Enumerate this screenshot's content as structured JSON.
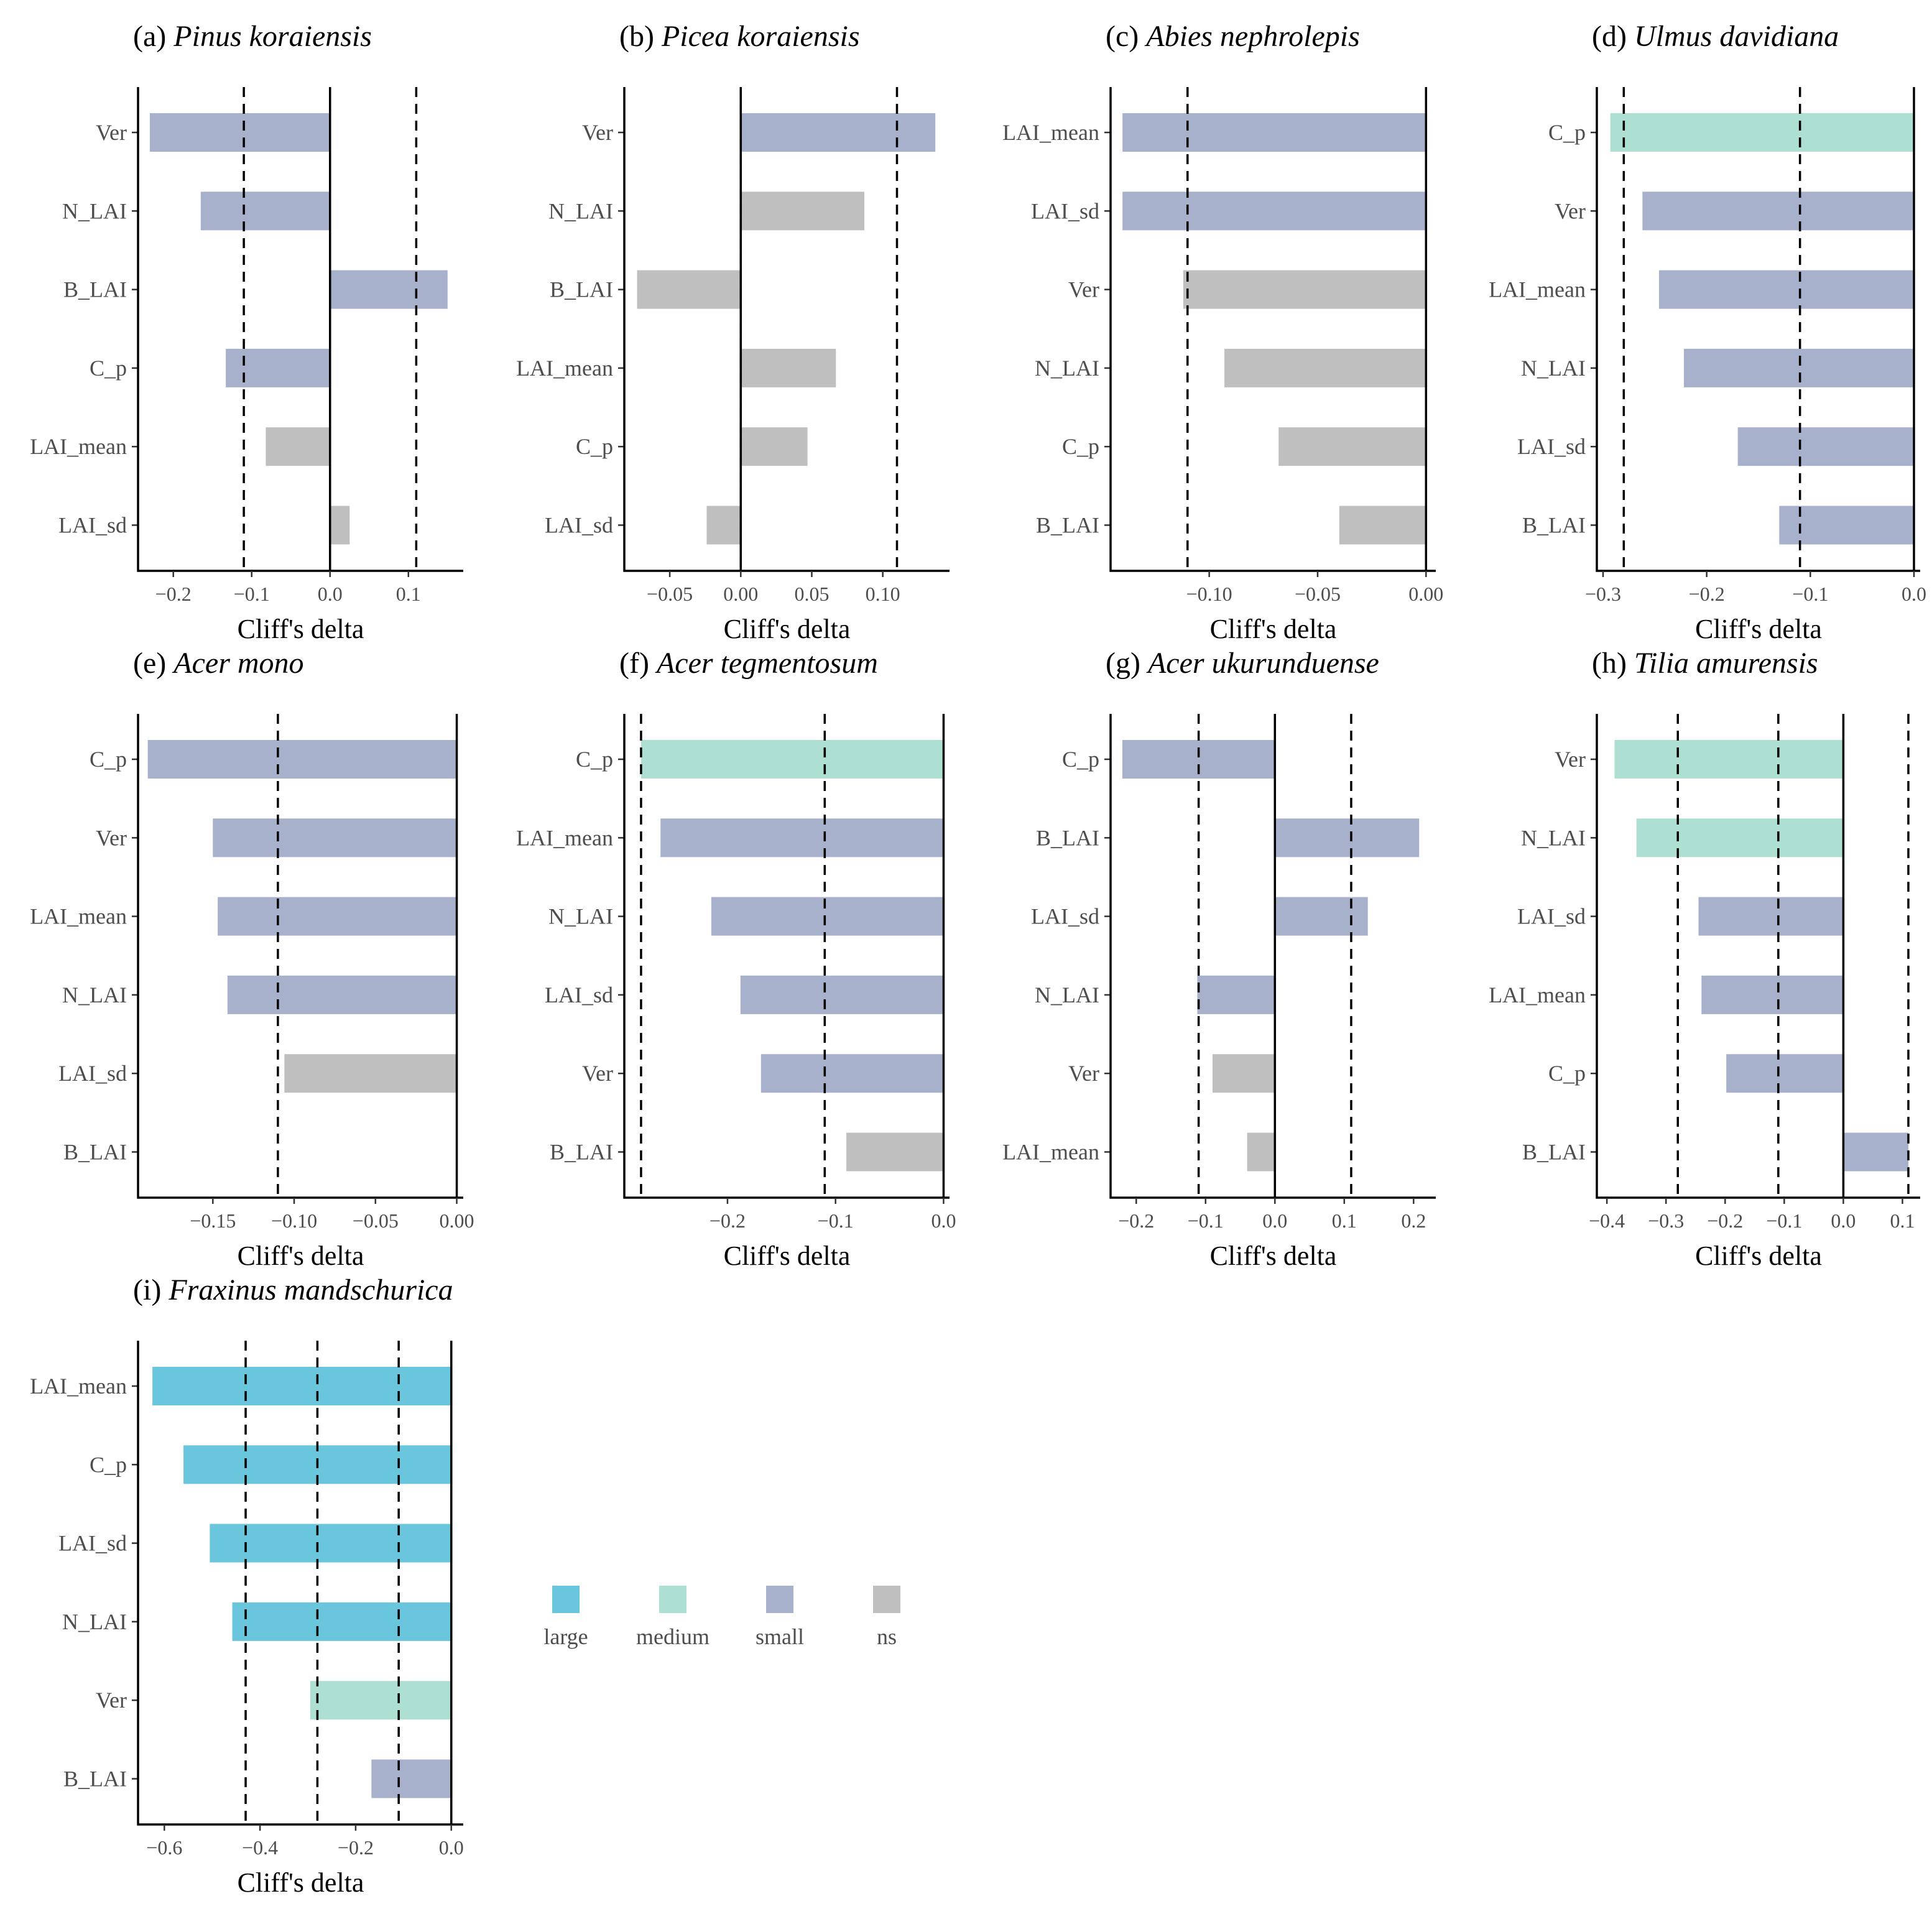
{
  "chart_data": {
    "type": "bar",
    "orientation": "horizontal",
    "xlabel": "Cliff's delta",
    "colors": {
      "large": "#6ac6dc",
      "medium": "#addfd3",
      "small": "#a7b1cc",
      "ns": "#bfbfbf"
    },
    "legend": {
      "placement": "bottom-center",
      "items": [
        {
          "key": "large",
          "label": "large"
        },
        {
          "key": "medium",
          "label": "medium"
        },
        {
          "key": "small",
          "label": "small"
        },
        {
          "key": "ns",
          "label": "ns"
        }
      ]
    },
    "panels": [
      {
        "tag": "(a)",
        "species": "Pinus koraiensis",
        "xlim": [
          -0.245,
          0.17
        ],
        "ticks": [
          -0.2,
          -0.1,
          0.0,
          0.1
        ],
        "tick_labels": [
          "−0.2",
          "−0.1",
          "0.0",
          "0.1"
        ],
        "thresholds": [
          -0.11,
          0.11
        ],
        "bars": [
          {
            "label": "Ver",
            "value": -0.23,
            "sig": "small"
          },
          {
            "label": "N_LAI",
            "value": -0.165,
            "sig": "small"
          },
          {
            "label": "B_LAI",
            "value": 0.15,
            "sig": "small"
          },
          {
            "label": "C_p",
            "value": -0.133,
            "sig": "small"
          },
          {
            "label": "LAI_mean",
            "value": -0.082,
            "sig": "ns"
          },
          {
            "label": "LAI_sd",
            "value": 0.025,
            "sig": "ns"
          }
        ]
      },
      {
        "tag": "(b)",
        "species": "Picea koraiensis",
        "xlim": [
          -0.082,
          0.147
        ],
        "ticks": [
          -0.05,
          0.0,
          0.05,
          0.1
        ],
        "tick_labels": [
          "−0.05",
          "0.00",
          "0.05",
          "0.10"
        ],
        "thresholds": [
          0.0,
          0.11
        ],
        "bars": [
          {
            "label": "Ver",
            "value": 0.137,
            "sig": "small"
          },
          {
            "label": "N_LAI",
            "value": 0.087,
            "sig": "ns"
          },
          {
            "label": "B_LAI",
            "value": -0.073,
            "sig": "ns"
          },
          {
            "label": "LAI_mean",
            "value": 0.067,
            "sig": "ns"
          },
          {
            "label": "C_p",
            "value": 0.047,
            "sig": "ns"
          },
          {
            "label": "LAI_sd",
            "value": -0.024,
            "sig": "ns"
          }
        ]
      },
      {
        "tag": "(c)",
        "species": "Abies nephrolepis",
        "xlim": [
          -0.1455,
          0.0045
        ],
        "ticks": [
          -0.1,
          -0.05,
          0.0
        ],
        "tick_labels": [
          "−0.10",
          "−0.05",
          "0.00"
        ],
        "thresholds": [
          -0.11
        ],
        "bars": [
          {
            "label": "LAI_mean",
            "value": -0.14,
            "sig": "small"
          },
          {
            "label": "LAI_sd",
            "value": -0.14,
            "sig": "small"
          },
          {
            "label": "Ver",
            "value": -0.112,
            "sig": "ns"
          },
          {
            "label": "N_LAI",
            "value": -0.093,
            "sig": "ns"
          },
          {
            "label": "C_p",
            "value": -0.068,
            "sig": "ns"
          },
          {
            "label": "B_LAI",
            "value": -0.04,
            "sig": "ns"
          }
        ]
      },
      {
        "tag": "(d)",
        "species": "Ulmus davidiana",
        "xlim": [
          -0.306,
          0.006
        ],
        "ticks": [
          -0.3,
          -0.2,
          -0.1,
          0.0
        ],
        "tick_labels": [
          "−0.3",
          "−0.2",
          "−0.1",
          "0.0"
        ],
        "thresholds": [
          -0.28,
          -0.11
        ],
        "bars": [
          {
            "label": "C_p",
            "value": -0.293,
            "sig": "medium"
          },
          {
            "label": "Ver",
            "value": -0.262,
            "sig": "small"
          },
          {
            "label": "LAI_mean",
            "value": -0.246,
            "sig": "small"
          },
          {
            "label": "N_LAI",
            "value": -0.222,
            "sig": "small"
          },
          {
            "label": "LAI_sd",
            "value": -0.17,
            "sig": "small"
          },
          {
            "label": "B_LAI",
            "value": -0.13,
            "sig": "small"
          }
        ]
      },
      {
        "tag": "(e)",
        "species": "Acer mono",
        "xlim": [
          -0.196,
          0.004
        ],
        "ticks": [
          -0.15,
          -0.1,
          -0.05,
          0.0
        ],
        "tick_labels": [
          "−0.15",
          "−0.10",
          "−0.05",
          "0.00"
        ],
        "thresholds": [
          -0.11
        ],
        "bars": [
          {
            "label": "C_p",
            "value": -0.19,
            "sig": "small"
          },
          {
            "label": "Ver",
            "value": -0.15,
            "sig": "small"
          },
          {
            "label": "LAI_mean",
            "value": -0.147,
            "sig": "small"
          },
          {
            "label": "N_LAI",
            "value": -0.141,
            "sig": "small"
          },
          {
            "label": "LAI_sd",
            "value": -0.106,
            "sig": "ns"
          },
          {
            "label": "B_LAI",
            "value": 0.0,
            "sig": "ns"
          }
        ]
      },
      {
        "tag": "(f)",
        "species": "Acer tegmentosum",
        "xlim": [
          -0.2955,
          0.0055
        ],
        "ticks": [
          -0.2,
          -0.1,
          0.0
        ],
        "tick_labels": [
          "−0.2",
          "−0.1",
          "0.0"
        ],
        "thresholds": [
          -0.28,
          -0.11
        ],
        "bars": [
          {
            "label": "C_p",
            "value": -0.28,
            "sig": "medium"
          },
          {
            "label": "LAI_mean",
            "value": -0.262,
            "sig": "small"
          },
          {
            "label": "N_LAI",
            "value": -0.215,
            "sig": "small"
          },
          {
            "label": "LAI_sd",
            "value": -0.188,
            "sig": "small"
          },
          {
            "label": "Ver",
            "value": -0.169,
            "sig": "small"
          },
          {
            "label": "B_LAI",
            "value": -0.09,
            "sig": "ns"
          }
        ]
      },
      {
        "tag": "(g)",
        "species": "Acer ukurunduense",
        "xlim": [
          -0.237,
          0.232
        ],
        "ticks": [
          -0.2,
          -0.1,
          0.0,
          0.1,
          0.2
        ],
        "tick_labels": [
          "−0.2",
          "−0.1",
          "0.0",
          "0.1",
          "0.2"
        ],
        "thresholds": [
          -0.11,
          0.11
        ],
        "bars": [
          {
            "label": "C_p",
            "value": -0.22,
            "sig": "small"
          },
          {
            "label": "B_LAI",
            "value": 0.208,
            "sig": "small"
          },
          {
            "label": "LAI_sd",
            "value": 0.134,
            "sig": "small"
          },
          {
            "label": "N_LAI",
            "value": -0.112,
            "sig": "small"
          },
          {
            "label": "Ver",
            "value": -0.09,
            "sig": "ns"
          },
          {
            "label": "LAI_mean",
            "value": -0.04,
            "sig": "ns"
          }
        ]
      },
      {
        "tag": "(h)",
        "species": "Tilia amurensis",
        "xlim": [
          -0.417,
          0.13
        ],
        "ticks": [
          -0.4,
          -0.3,
          -0.2,
          -0.1,
          0.0,
          0.1
        ],
        "tick_labels": [
          "−0.4",
          "−0.3",
          "−0.2",
          "−0.1",
          "0.0",
          "0.1"
        ],
        "thresholds": [
          -0.28,
          -0.11,
          0.11
        ],
        "bars": [
          {
            "label": "Ver",
            "value": -0.387,
            "sig": "medium"
          },
          {
            "label": "N_LAI",
            "value": -0.35,
            "sig": "medium"
          },
          {
            "label": "LAI_sd",
            "value": -0.245,
            "sig": "small"
          },
          {
            "label": "LAI_mean",
            "value": -0.24,
            "sig": "small"
          },
          {
            "label": "C_p",
            "value": -0.198,
            "sig": "small"
          },
          {
            "label": "B_LAI",
            "value": 0.11,
            "sig": "small"
          }
        ]
      },
      {
        "tag": "(i)",
        "species": "Fraxinus mandschurica",
        "xlim": [
          -0.655,
          0.025
        ],
        "ticks": [
          -0.6,
          -0.4,
          -0.2,
          0.0
        ],
        "tick_labels": [
          "−0.6",
          "−0.4",
          "−0.2",
          "0.0"
        ],
        "thresholds": [
          -0.43,
          -0.28,
          -0.11
        ],
        "bars": [
          {
            "label": "LAI_mean",
            "value": -0.625,
            "sig": "large"
          },
          {
            "label": "C_p",
            "value": -0.56,
            "sig": "large"
          },
          {
            "label": "LAI_sd",
            "value": -0.505,
            "sig": "large"
          },
          {
            "label": "N_LAI",
            "value": -0.458,
            "sig": "large"
          },
          {
            "label": "Ver",
            "value": -0.295,
            "sig": "medium"
          },
          {
            "label": "B_LAI",
            "value": -0.167,
            "sig": "small"
          }
        ]
      }
    ]
  }
}
